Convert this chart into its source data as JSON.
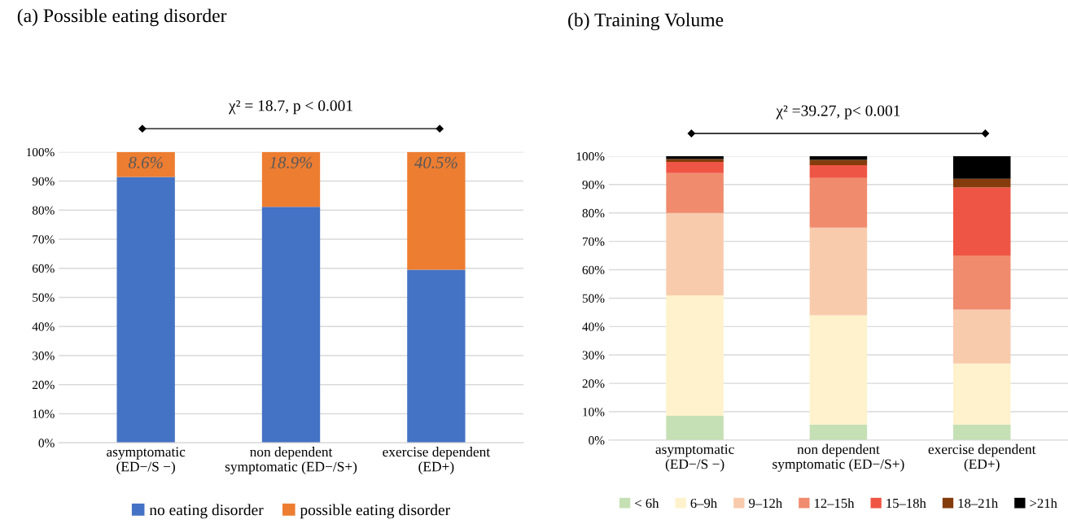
{
  "chart_data": [
    {
      "type": "bar",
      "title": "(a) Possible eating disorder",
      "stacked": true,
      "categories": [
        "asymptomatic\n(ED−/S −)",
        "non dependent\nsymptomatic (ED−/S+)",
        "exercise dependent\n(ED+)"
      ],
      "series": [
        {
          "name": "no eating disorder",
          "color": "#4472c4",
          "values": [
            91.4,
            81.1,
            59.5
          ]
        },
        {
          "name": "possible eating disorder",
          "color": "#ed7d31",
          "values": [
            8.6,
            18.9,
            40.5
          ],
          "value_labels": [
            "8.6%",
            "18.9%",
            "40.5%"
          ]
        }
      ],
      "ylim": [
        0,
        100
      ],
      "yticks": [
        {
          "value": 0,
          "label": "0%"
        },
        {
          "value": 10,
          "label": "10%"
        },
        {
          "value": 20,
          "label": "20%"
        },
        {
          "value": 30,
          "label": "30%"
        },
        {
          "value": 40,
          "label": "40%"
        },
        {
          "value": 50,
          "label": "50%"
        },
        {
          "value": 60,
          "label": "60%"
        },
        {
          "value": 70,
          "label": "70%"
        },
        {
          "value": 80,
          "label": "80%"
        },
        {
          "value": 90,
          "label": "90%"
        },
        {
          "value": 100,
          "label": "100%"
        }
      ],
      "grid": "y",
      "legend": "bottom",
      "annotations": [
        "χ² = 18.7, p < 0.001"
      ]
    },
    {
      "type": "bar",
      "title": "(b) Training Volume",
      "stacked": true,
      "categories": [
        "asymptomatic\n(ED−/S −)",
        "non dependent\nsymptomatic (ED−/S+)",
        "exercise dependent\n(ED+)"
      ],
      "series": [
        {
          "name": "< 6h",
          "color": "#c5e0b4",
          "values": [
            8.6,
            5.5,
            5.5
          ]
        },
        {
          "name": "6–9h",
          "color": "#fff2cc",
          "values": [
            42.4,
            38.5,
            21.5
          ]
        },
        {
          "name": "9–12h",
          "color": "#f8cbad",
          "values": [
            29,
            30.8,
            19
          ]
        },
        {
          "name": "12–15h",
          "color": "#f08b6e",
          "values": [
            14,
            17.5,
            19
          ]
        },
        {
          "name": "15–18h",
          "color": "#ef5545",
          "values": [
            4,
            4.5,
            24
          ]
        },
        {
          "name": "18–21h",
          "color": "#843c0c",
          "values": [
            1,
            1.9,
            3
          ]
        },
        {
          "name": ">21h",
          "color": "#000000",
          "values": [
            1,
            1.3,
            8
          ]
        }
      ],
      "ylim": [
        0,
        100
      ],
      "yticks": [
        {
          "value": 0,
          "label": "0%"
        },
        {
          "value": 10,
          "label": "10%"
        },
        {
          "value": 20,
          "label": "20%"
        },
        {
          "value": 30,
          "label": "30%"
        },
        {
          "value": 40,
          "label": "40%"
        },
        {
          "value": 50,
          "label": "50%"
        },
        {
          "value": 60,
          "label": "60%"
        },
        {
          "value": 70,
          "label": "70%"
        },
        {
          "value": 80,
          "label": "80%"
        },
        {
          "value": 90,
          "label": "90%"
        },
        {
          "value": 100,
          "label": "100%"
        }
      ],
      "grid": "y",
      "legend": "bottom",
      "annotations": [
        "χ² =39.27, p< 0.001"
      ]
    }
  ]
}
